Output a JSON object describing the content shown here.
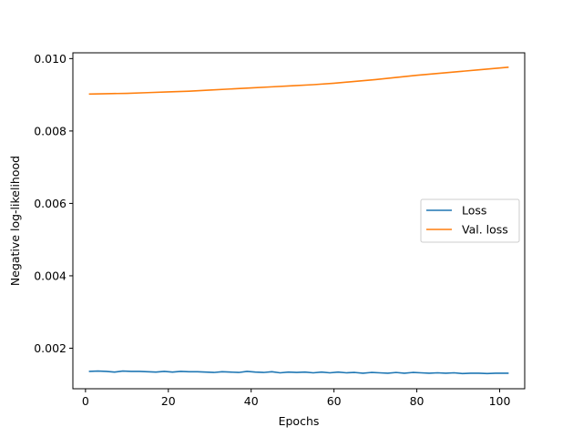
{
  "chart_data": {
    "type": "line",
    "title": "",
    "xlabel": "Epochs",
    "ylabel": "Negative log-likelihood",
    "xlim": [
      -3.05,
      106.05
    ],
    "ylim": [
      0.00088,
      0.01016
    ],
    "xticks": [
      0,
      20,
      40,
      60,
      80,
      100
    ],
    "xtick_labels": [
      "0",
      "20",
      "40",
      "60",
      "80",
      "100"
    ],
    "yticks": [
      0.002,
      0.004,
      0.006,
      0.008,
      0.01
    ],
    "ytick_labels": [
      "0.002",
      "0.004",
      "0.006",
      "0.008",
      "0.010"
    ],
    "grid": false,
    "legend_position": "center-right",
    "series": [
      {
        "name": "Loss",
        "color": "#1f77b4",
        "x": [
          1,
          3,
          5,
          7,
          9,
          11,
          13,
          15,
          17,
          19,
          21,
          23,
          25,
          27,
          29,
          31,
          33,
          35,
          37,
          39,
          41,
          43,
          45,
          47,
          49,
          51,
          53,
          55,
          57,
          59,
          61,
          63,
          65,
          67,
          69,
          71,
          73,
          75,
          77,
          79,
          81,
          83,
          85,
          87,
          89,
          91,
          93,
          95,
          97,
          99,
          102
        ],
        "y": [
          0.00136,
          0.00137,
          0.00136,
          0.00134,
          0.00137,
          0.00136,
          0.00136,
          0.00135,
          0.00134,
          0.00136,
          0.00134,
          0.00136,
          0.00135,
          0.00135,
          0.00134,
          0.00133,
          0.00135,
          0.00134,
          0.00133,
          0.00136,
          0.00134,
          0.00133,
          0.00135,
          0.00132,
          0.00134,
          0.00133,
          0.00134,
          0.00132,
          0.00134,
          0.00132,
          0.00134,
          0.00132,
          0.00133,
          0.00131,
          0.00133,
          0.00132,
          0.00131,
          0.00133,
          0.00131,
          0.00133,
          0.00132,
          0.00131,
          0.00132,
          0.00131,
          0.00132,
          0.0013,
          0.00131,
          0.00131,
          0.0013,
          0.00131,
          0.00131
        ]
      },
      {
        "name": "Val. loss",
        "color": "#ff7f0e",
        "x": [
          1,
          5,
          10,
          15,
          20,
          25,
          30,
          35,
          40,
          45,
          50,
          55,
          60,
          65,
          70,
          75,
          80,
          85,
          90,
          95,
          102
        ],
        "y": [
          0.00902,
          0.00903,
          0.00904,
          0.00906,
          0.00908,
          0.0091,
          0.00913,
          0.00916,
          0.00919,
          0.00922,
          0.00925,
          0.00928,
          0.00932,
          0.00937,
          0.00942,
          0.00948,
          0.00954,
          0.00959,
          0.00964,
          0.00969,
          0.00976
        ]
      }
    ]
  }
}
